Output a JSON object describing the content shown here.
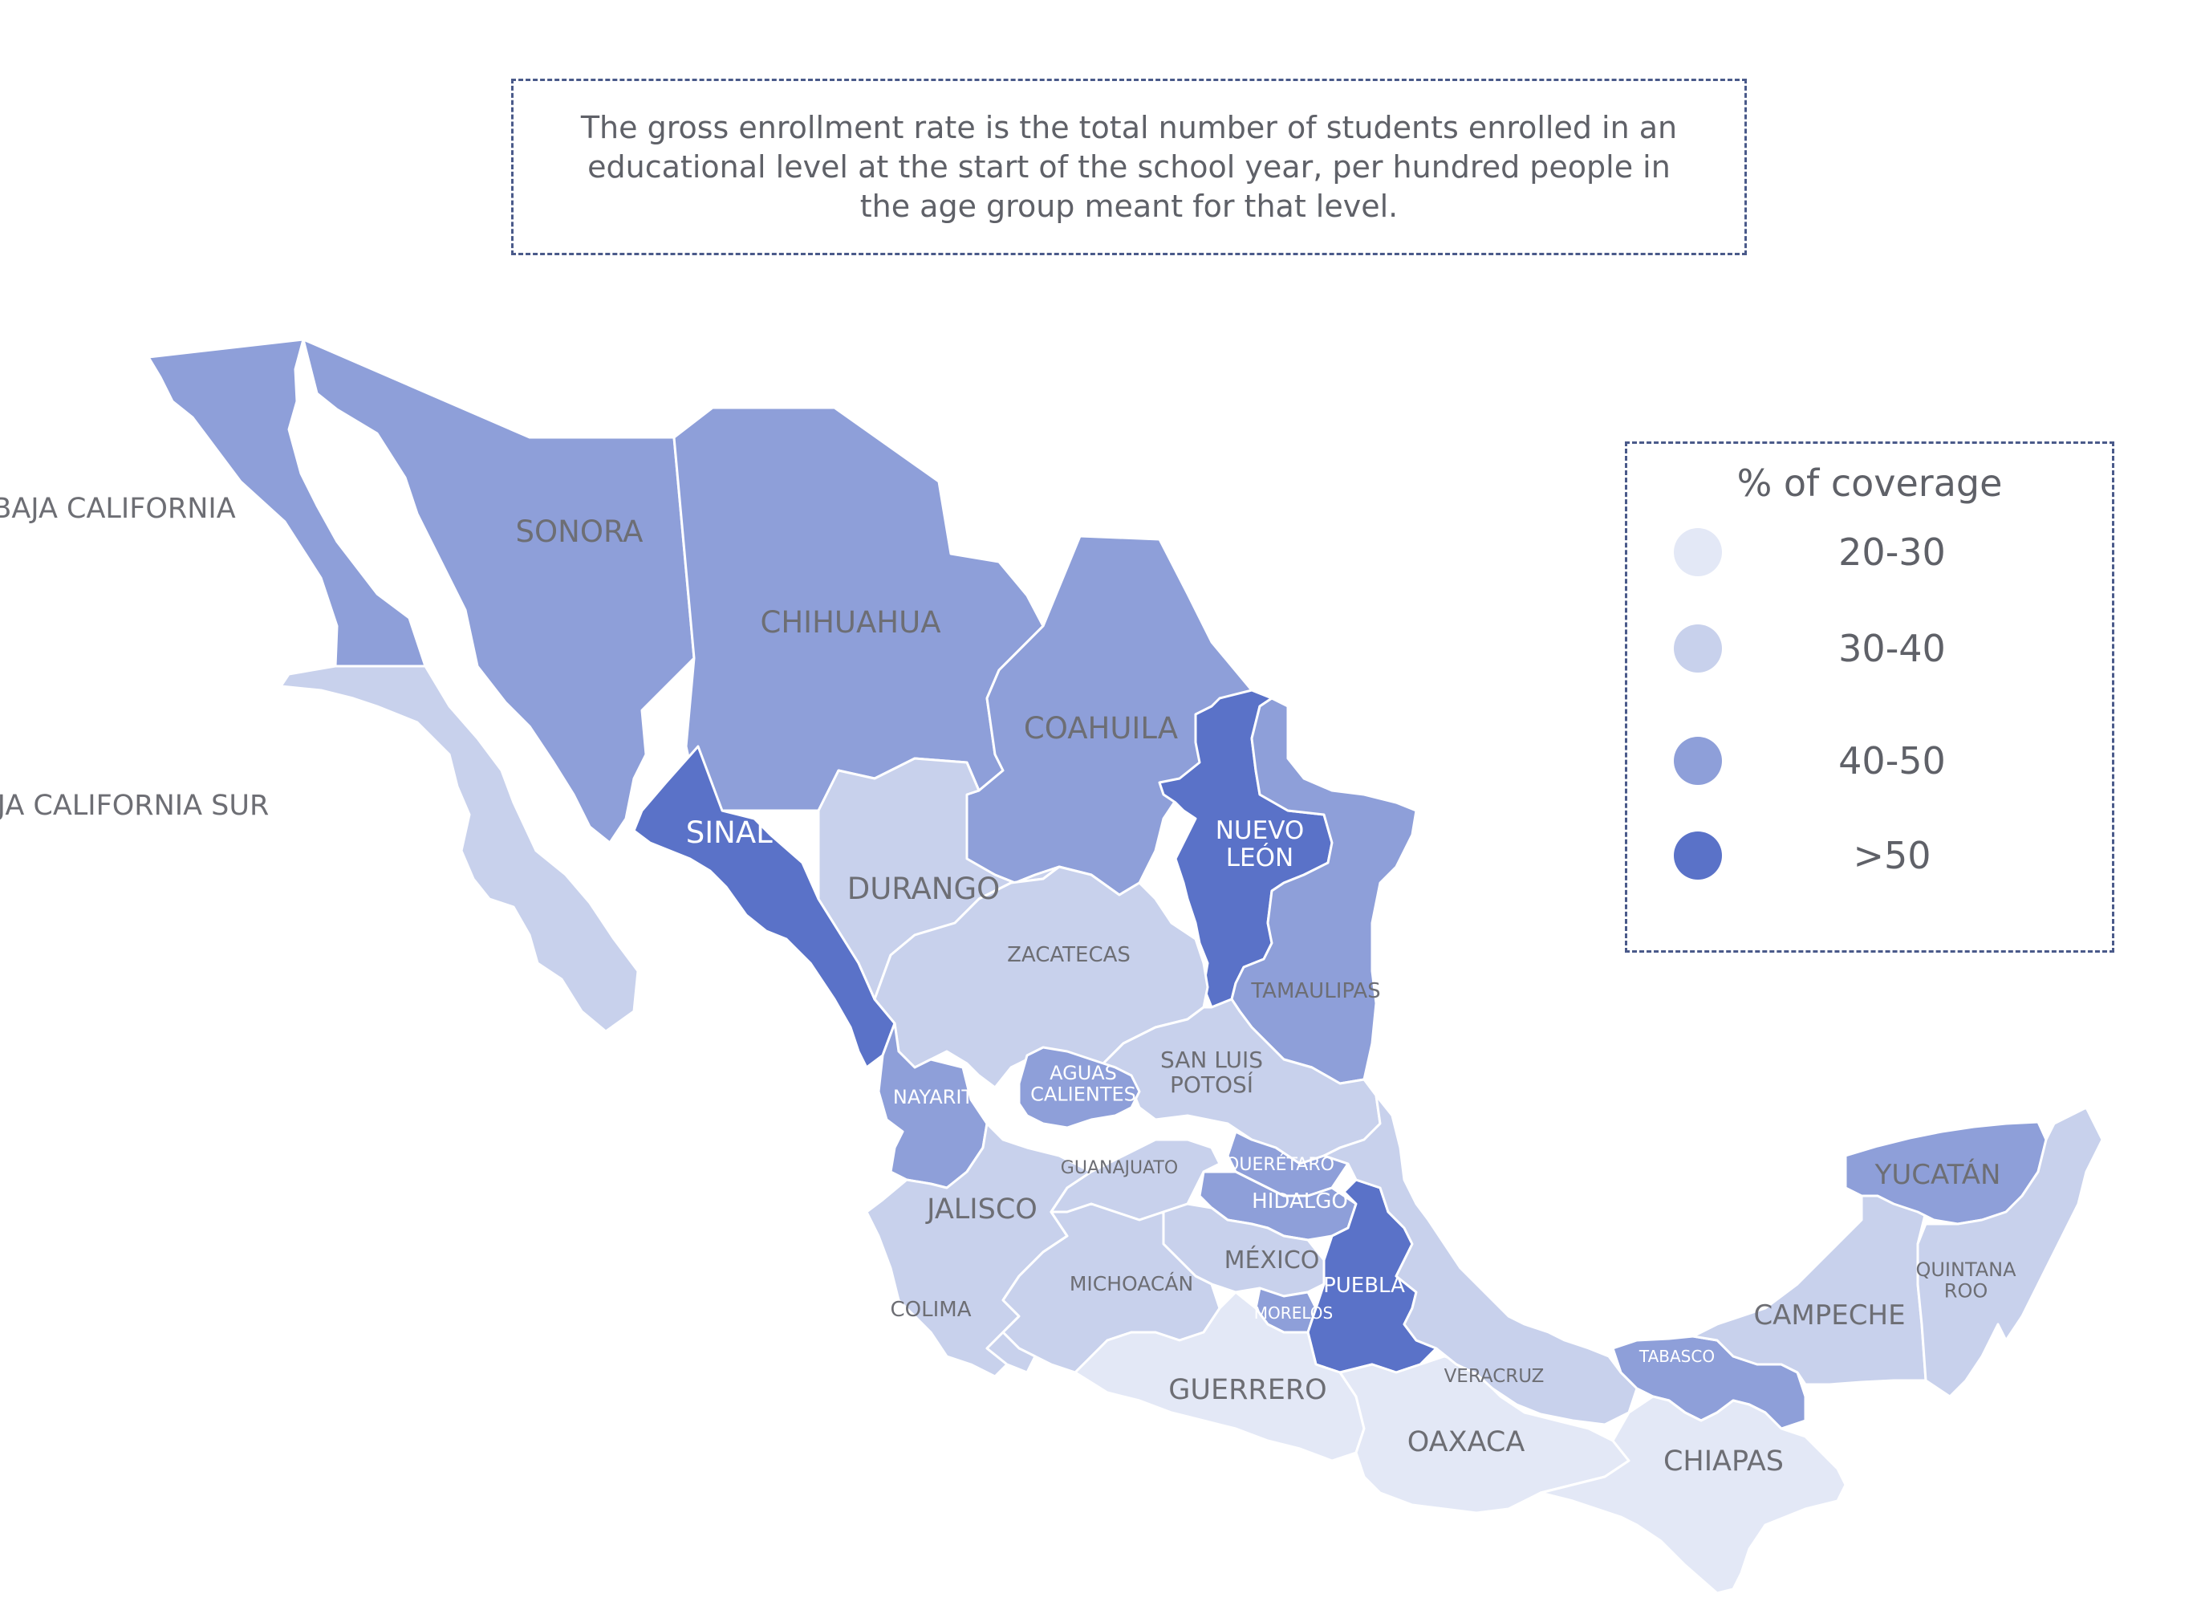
{
  "note": {
    "text": "The gross enrollment rate is the total number of students enrolled in an educational level at the start of the school year, per hundred people in the age group meant for that level."
  },
  "legend": {
    "title": "% of coverage",
    "items": [
      {
        "label": "20-30",
        "color": "#e3e8f6"
      },
      {
        "label": "30-40",
        "color": "#c8d1ec"
      },
      {
        "label": "40-50",
        "color": "#8e9fd9"
      },
      {
        "label": ">50",
        "color": "#5a72c8"
      }
    ]
  },
  "map": {
    "states": [
      {
        "name": "BAJA CALIFORNIA",
        "category": "40-50"
      },
      {
        "name": "BAJA CALIFORNIA SUR",
        "category": "30-40"
      },
      {
        "name": "SONORA",
        "category": "40-50"
      },
      {
        "name": "CHIHUAHUA",
        "category": "40-50"
      },
      {
        "name": "COAHUILA",
        "category": "40-50"
      },
      {
        "name": "NUEVO LEÓN",
        "category": ">50"
      },
      {
        "name": "TAMAULIPAS",
        "category": "40-50"
      },
      {
        "name": "SINALOA",
        "category": ">50"
      },
      {
        "name": "DURANGO",
        "category": "30-40"
      },
      {
        "name": "ZACATECAS",
        "category": "30-40"
      },
      {
        "name": "SAN LUIS POTOSÍ",
        "category": "30-40"
      },
      {
        "name": "NAYARIT",
        "category": "40-50"
      },
      {
        "name": "AGUAS CALIENTES",
        "category": "40-50"
      },
      {
        "name": "JALISCO",
        "category": "30-40"
      },
      {
        "name": "GUANAJUATO",
        "category": "30-40"
      },
      {
        "name": "QUERÉTARO",
        "category": "40-50"
      },
      {
        "name": "HIDALGO",
        "category": "40-50"
      },
      {
        "name": "MÉXICO",
        "category": "30-40"
      },
      {
        "name": "MICHOACÁN",
        "category": "30-40"
      },
      {
        "name": "COLIMA",
        "category": "30-40"
      },
      {
        "name": "MORELOS",
        "category": "40-50"
      },
      {
        "name": "PUEBLA",
        "category": ">50"
      },
      {
        "name": "GUERRERO",
        "category": "20-30"
      },
      {
        "name": "OAXACA",
        "category": "20-30"
      },
      {
        "name": "VERACRUZ",
        "category": "30-40"
      },
      {
        "name": "TABASCO",
        "category": "40-50"
      },
      {
        "name": "CHIAPAS",
        "category": "20-30"
      },
      {
        "name": "CAMPECHE",
        "category": "30-40"
      },
      {
        "name": "YUCATÁN",
        "category": "40-50"
      },
      {
        "name": "QUINTANA ROO",
        "category": "30-40"
      }
    ]
  }
}
